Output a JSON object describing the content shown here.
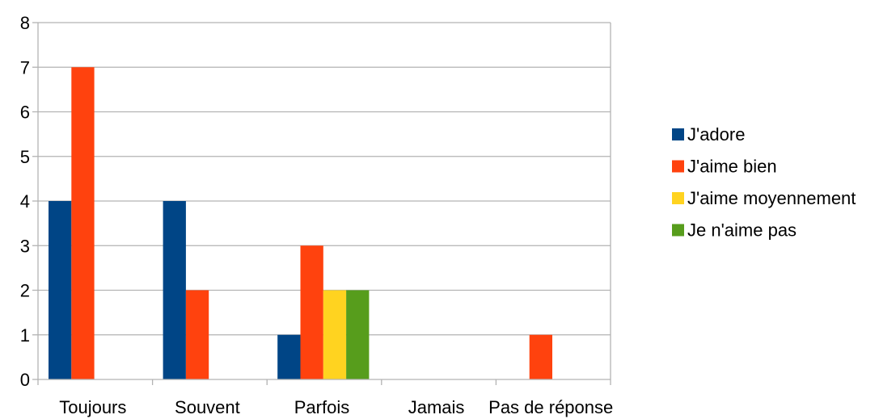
{
  "chart_data": {
    "type": "bar",
    "title": "",
    "xlabel": "",
    "ylabel": "",
    "categories": [
      "Toujours",
      "Souvent",
      "Parfois",
      "Jamais",
      "Pas de réponse"
    ],
    "series": [
      {
        "name": "J'adore",
        "color": "#004586",
        "values": [
          4,
          4,
          1,
          0,
          0
        ]
      },
      {
        "name": "J'aime bien",
        "color": "#ff420e",
        "values": [
          7,
          2,
          3,
          0,
          1
        ]
      },
      {
        "name": "J'aime moyennement",
        "color": "#ffd320",
        "values": [
          0,
          0,
          2,
          0,
          0
        ]
      },
      {
        "name": "Je n'aime pas",
        "color": "#579d1c",
        "values": [
          0,
          0,
          2,
          0,
          0
        ]
      }
    ],
    "ylim": [
      0,
      8
    ],
    "yticks": [
      0,
      1,
      2,
      3,
      4,
      5,
      6,
      7,
      8
    ],
    "grid": true,
    "legend_position": "right"
  }
}
